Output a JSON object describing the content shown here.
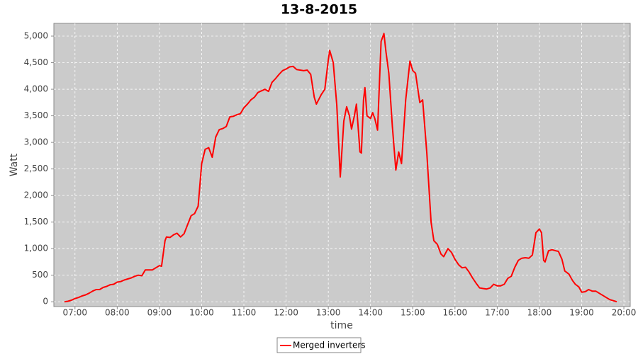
{
  "chart_data": {
    "type": "line",
    "title": "13-8-2015",
    "x_label": "time",
    "y_label": "Watt",
    "xlim": [
      "06:30",
      "20:09"
    ],
    "ylim": [
      -90,
      5240
    ],
    "xticks": [
      "07:00",
      "08:00",
      "09:00",
      "10:00",
      "11:00",
      "12:00",
      "13:00",
      "14:00",
      "15:00",
      "16:00",
      "17:00",
      "18:00",
      "19:00",
      "20:00"
    ],
    "yticks": [
      0,
      500,
      {
        "value": 1000,
        "label": "1,000"
      },
      {
        "value": 1500,
        "label": "1,500"
      },
      {
        "value": 2000,
        "label": "2,000"
      },
      {
        "value": 2500,
        "label": "2,500"
      },
      {
        "value": 3000,
        "label": "3,000"
      },
      {
        "value": 3500,
        "label": "3,500"
      },
      {
        "value": 4000,
        "label": "4,000"
      },
      {
        "value": 4500,
        "label": "4,500"
      },
      {
        "value": 5000,
        "label": "5,000"
      }
    ],
    "grid": true,
    "legend": "bottom",
    "series": [
      {
        "name": "Merged inverters",
        "color": "#ff0000",
        "x": [
          "06:45",
          "06:50",
          "06:55",
          "07:00",
          "07:05",
          "07:10",
          "07:15",
          "07:20",
          "07:25",
          "07:30",
          "07:35",
          "07:40",
          "07:45",
          "07:50",
          "07:55",
          "08:00",
          "08:05",
          "08:10",
          "08:15",
          "08:20",
          "08:25",
          "08:30",
          "08:35",
          "08:40",
          "08:45",
          "08:50",
          "08:55",
          "09:00",
          "09:03",
          "09:08",
          "09:10",
          "09:15",
          "09:20",
          "09:25",
          "09:30",
          "09:35",
          "09:40",
          "09:45",
          "09:50",
          "09:55",
          "10:00",
          "10:05",
          "10:10",
          "10:15",
          "10:20",
          "10:25",
          "10:30",
          "10:35",
          "10:40",
          "10:45",
          "10:50",
          "10:55",
          "11:00",
          "11:05",
          "11:10",
          "11:15",
          "11:20",
          "11:25",
          "11:30",
          "11:35",
          "11:40",
          "11:45",
          "11:50",
          "11:55",
          "12:00",
          "12:05",
          "12:10",
          "12:15",
          "12:20",
          "12:25",
          "12:30",
          "12:35",
          "12:40",
          "12:43",
          "12:50",
          "12:55",
          "13:00",
          "13:02",
          "13:07",
          "13:12",
          "13:17",
          "13:22",
          "13:26",
          "13:30",
          "13:33",
          "13:37",
          "13:40",
          "13:45",
          "13:47",
          "13:50",
          "13:52",
          "13:55",
          "14:00",
          "14:03",
          "14:06",
          "14:10",
          "14:15",
          "14:19",
          "14:22",
          "14:26",
          "14:31",
          "14:36",
          "14:40",
          "14:44",
          "14:50",
          "14:56",
          "15:00",
          "15:04",
          "15:10",
          "15:14",
          "15:20",
          "15:26",
          "15:30",
          "15:35",
          "15:40",
          "15:44",
          "15:50",
          "15:55",
          "16:00",
          "16:05",
          "16:10",
          "16:15",
          "16:20",
          "16:25",
          "16:30",
          "16:35",
          "16:40",
          "16:45",
          "16:50",
          "16:55",
          "17:00",
          "17:05",
          "17:10",
          "17:15",
          "17:20",
          "17:25",
          "17:30",
          "17:35",
          "17:40",
          "17:45",
          "17:50",
          "17:55",
          "18:00",
          "18:03",
          "18:06",
          "18:08",
          "18:13",
          "18:18",
          "18:23",
          "18:27",
          "18:32",
          "18:36",
          "18:42",
          "18:47",
          "18:51",
          "18:56",
          "19:00",
          "19:05",
          "19:10",
          "19:15",
          "19:20",
          "19:25",
          "19:30",
          "19:35",
          "19:40",
          "19:45",
          "19:50"
        ],
        "values": [
          0,
          10,
          30,
          60,
          80,
          110,
          130,
          160,
          200,
          230,
          230,
          270,
          290,
          320,
          330,
          370,
          380,
          410,
          430,
          450,
          480,
          500,
          490,
          600,
          600,
          600,
          640,
          680,
          670,
          1150,
          1220,
          1210,
          1260,
          1290,
          1220,
          1280,
          1450,
          1620,
          1660,
          1800,
          2600,
          2870,
          2900,
          2720,
          3100,
          3240,
          3260,
          3300,
          3480,
          3490,
          3520,
          3540,
          3650,
          3720,
          3800,
          3850,
          3940,
          3970,
          4000,
          3960,
          4130,
          4200,
          4280,
          4350,
          4380,
          4420,
          4430,
          4370,
          4360,
          4350,
          4360,
          4280,
          3850,
          3720,
          3900,
          4000,
          4550,
          4730,
          4500,
          3700,
          2350,
          3400,
          3670,
          3500,
          3250,
          3500,
          3720,
          2820,
          2800,
          3800,
          4030,
          3500,
          3450,
          3560,
          3450,
          3230,
          4900,
          5050,
          4700,
          4300,
          3300,
          2480,
          2820,
          2600,
          3800,
          4530,
          4350,
          4300,
          3750,
          3800,
          2800,
          1500,
          1150,
          1080,
          900,
          850,
          1000,
          930,
          800,
          700,
          640,
          650,
          560,
          450,
          350,
          260,
          250,
          240,
          260,
          330,
          300,
          300,
          330,
          440,
          480,
          650,
          780,
          820,
          830,
          820,
          880,
          1300,
          1370,
          1300,
          780,
          750,
          960,
          980,
          960,
          950,
          800,
          580,
          520,
          400,
          330,
          280,
          180,
          190,
          230,
          200,
          200,
          160,
          120,
          80,
          40,
          20,
          0
        ]
      }
    ]
  }
}
